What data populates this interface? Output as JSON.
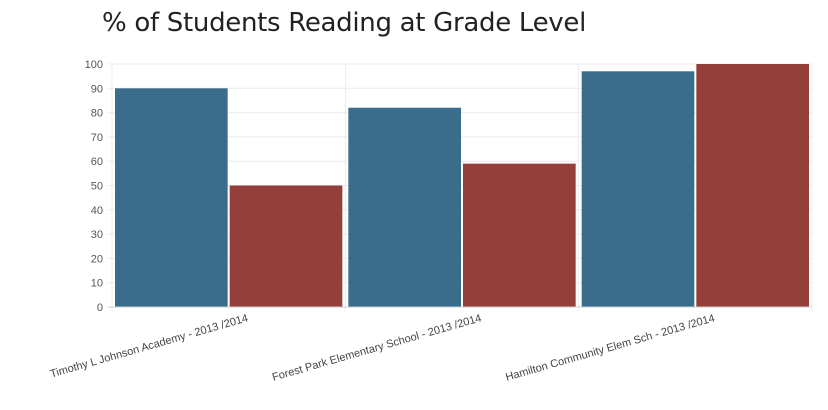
{
  "chart_data": {
    "type": "bar",
    "title": "% of Students Reading at Grade Level",
    "categories": [
      "Timothy L Johnson Academy - 2013 /2014",
      "Forest Park Elementary School - 2013 /2014",
      "Hamilton Community Elem Sch - 2013 /2014"
    ],
    "series": [
      {
        "values": [
          90,
          82,
          97
        ],
        "color": "#3a6d8c"
      },
      {
        "values": [
          50,
          59,
          100
        ],
        "color": "#943f3a"
      }
    ],
    "ylim": [
      0,
      100
    ],
    "yticks": [
      0,
      10,
      20,
      30,
      40,
      50,
      60,
      70,
      80,
      90,
      100
    ],
    "xlabel": "",
    "ylabel": "",
    "grid": true,
    "legend": "none"
  }
}
